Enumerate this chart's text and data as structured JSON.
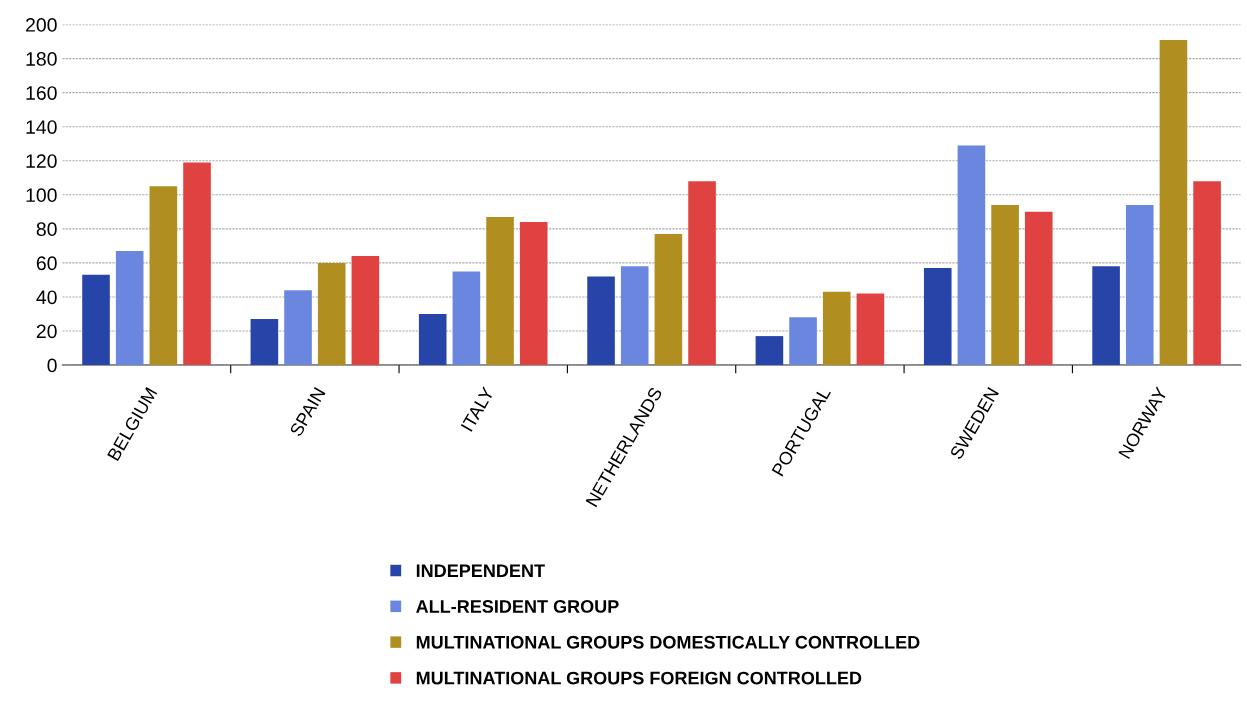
{
  "chart_data": {
    "type": "bar",
    "categories": [
      "BELGIUM",
      "SPAIN",
      "ITALY",
      "NETHERLANDS",
      "PORTUGAL",
      "SWEDEN",
      "NORWAY"
    ],
    "series": [
      {
        "name": "INDEPENDENT",
        "color": "#2745a8",
        "values": [
          53,
          27,
          30,
          52,
          17,
          57,
          58
        ]
      },
      {
        "name": "ALL-RESIDENT GROUP",
        "color": "#6b86de",
        "values": [
          67,
          44,
          55,
          58,
          28,
          129,
          94
        ]
      },
      {
        "name": "MULTINATIONAL GROUPS DOMESTICALLY CONTROLLED",
        "color": "#b08f20",
        "values": [
          105,
          60,
          87,
          77,
          43,
          94,
          191
        ]
      },
      {
        "name": "MULTINATIONAL GROUPS FOREIGN CONTROLLED",
        "color": "#e04141",
        "values": [
          119,
          64,
          84,
          108,
          42,
          90,
          108
        ]
      }
    ],
    "ylim": [
      0,
      200
    ],
    "yticks": [
      0,
      20,
      40,
      60,
      80,
      100,
      120,
      140,
      160,
      180,
      200
    ],
    "grid": "y",
    "legend": "bottom"
  }
}
